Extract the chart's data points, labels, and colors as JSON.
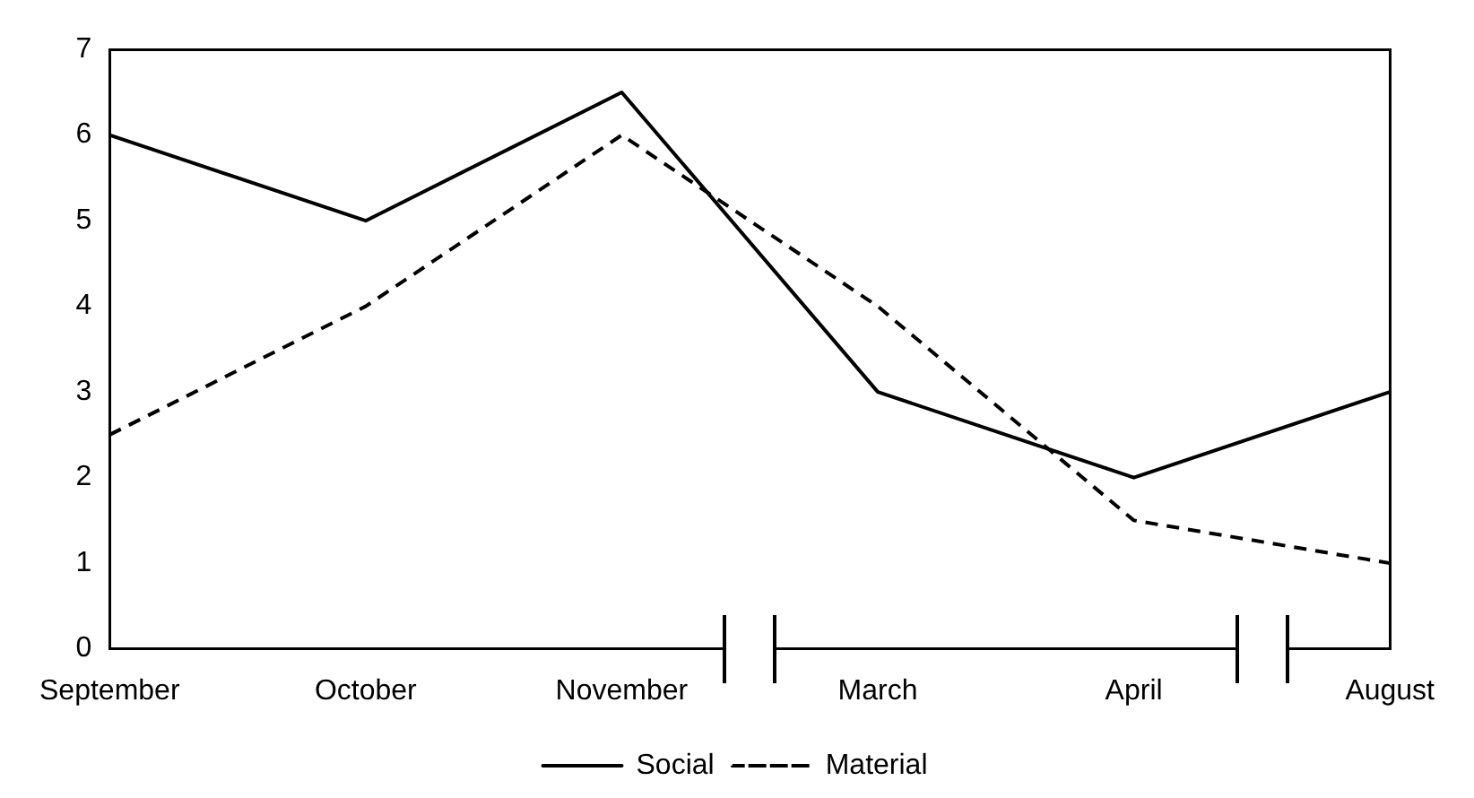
{
  "chart_data": {
    "type": "line",
    "categories": [
      "September",
      "October",
      "November",
      "March",
      "April",
      "August"
    ],
    "series": [
      {
        "name": "Social",
        "color": "#000000",
        "values": [
          6,
          5,
          6.5,
          3,
          2,
          3
        ],
        "line_style": "solid"
      },
      {
        "name": "Material",
        "color": "#000000",
        "values": [
          2.5,
          4,
          6,
          4,
          1.5,
          1
        ],
        "line_style": "dashed"
      }
    ],
    "ylim": [
      0,
      7
    ],
    "yticks": [
      0,
      1,
      2,
      3,
      4,
      5,
      6,
      7
    ],
    "grid": false,
    "legend": "bottom",
    "marker": "none"
  }
}
